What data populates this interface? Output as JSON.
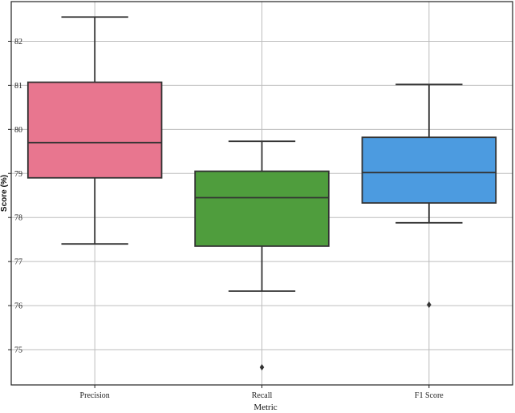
{
  "chart_data": {
    "type": "box",
    "xlabel": "Metric",
    "ylabel": "Score (%)",
    "ylim": [
      74.2,
      82.9
    ],
    "yticks": [
      75,
      76,
      77,
      78,
      79,
      80,
      81,
      82
    ],
    "grid": true,
    "categories": [
      "Precision",
      "Recall",
      "F1 Score"
    ],
    "boxes": [
      {
        "category": "Precision",
        "whisker_low": 77.4,
        "q1": 78.9,
        "median": 79.7,
        "q3": 81.07,
        "whisker_high": 82.55,
        "outliers": [],
        "color": "#e8768f"
      },
      {
        "category": "Recall",
        "whisker_low": 76.33,
        "q1": 77.35,
        "median": 78.45,
        "q3": 79.05,
        "whisker_high": 79.73,
        "outliers": [
          74.6
        ],
        "color": "#4f9d3d"
      },
      {
        "category": "F1 Score",
        "whisker_low": 77.88,
        "q1": 78.33,
        "median": 79.02,
        "q3": 79.82,
        "whisker_high": 81.02,
        "outliers": [
          76.02
        ],
        "color": "#4c9be0"
      }
    ]
  }
}
